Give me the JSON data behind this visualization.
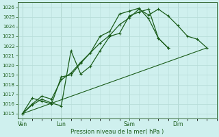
{
  "bg_color": "#cff0ee",
  "grid_color": "#b8ddd9",
  "line_color": "#1a5c1a",
  "xlabel": "Pression niveau de la mer( hPa )",
  "ylim": [
    1014.5,
    1026.5
  ],
  "yticks": [
    1015,
    1016,
    1017,
    1018,
    1019,
    1020,
    1021,
    1022,
    1023,
    1024,
    1025,
    1026
  ],
  "xtick_labels": [
    "Ven",
    "Lun",
    "Sam",
    "Dim"
  ],
  "xtick_positions": [
    0,
    4,
    11,
    16
  ],
  "xlim": [
    -0.5,
    20
  ],
  "series1_x": [
    0,
    1,
    2,
    3,
    4,
    5,
    6,
    7,
    8,
    9,
    10,
    11,
    12,
    13,
    14,
    15
  ],
  "series1_y": [
    1015.0,
    1015.9,
    1016.5,
    1016.1,
    1015.8,
    1021.5,
    1019.1,
    1019.9,
    1021.5,
    1023.0,
    1023.3,
    1025.1,
    1025.5,
    1025.8,
    1022.8,
    1021.8
  ],
  "series2_x": [
    0,
    1,
    2,
    3,
    4,
    5,
    6,
    7,
    8,
    9,
    10,
    11,
    12,
    13,
    14,
    15
  ],
  "series2_y": [
    1015.0,
    1016.6,
    1016.3,
    1016.0,
    1018.8,
    1019.0,
    1020.2,
    1021.3,
    1023.0,
    1023.5,
    1025.3,
    1025.6,
    1025.9,
    1024.8,
    1022.8,
    1021.8
  ],
  "series3_x": [
    0,
    1,
    2,
    3,
    4,
    5,
    6,
    7,
    8,
    9,
    10,
    11,
    12,
    13,
    14,
    15,
    16,
    17,
    18,
    19
  ],
  "series3_y": [
    1015.0,
    1016.0,
    1016.8,
    1016.5,
    1018.5,
    1019.2,
    1020.3,
    1021.3,
    1022.3,
    1023.1,
    1024.2,
    1024.9,
    1025.8,
    1025.2,
    1025.8,
    1025.1,
    1024.1,
    1023.0,
    1022.7,
    1021.8
  ],
  "trend_x": [
    0,
    19
  ],
  "trend_y": [
    1015.0,
    1021.8
  ],
  "vline_positions": [
    0,
    4,
    11,
    16
  ]
}
